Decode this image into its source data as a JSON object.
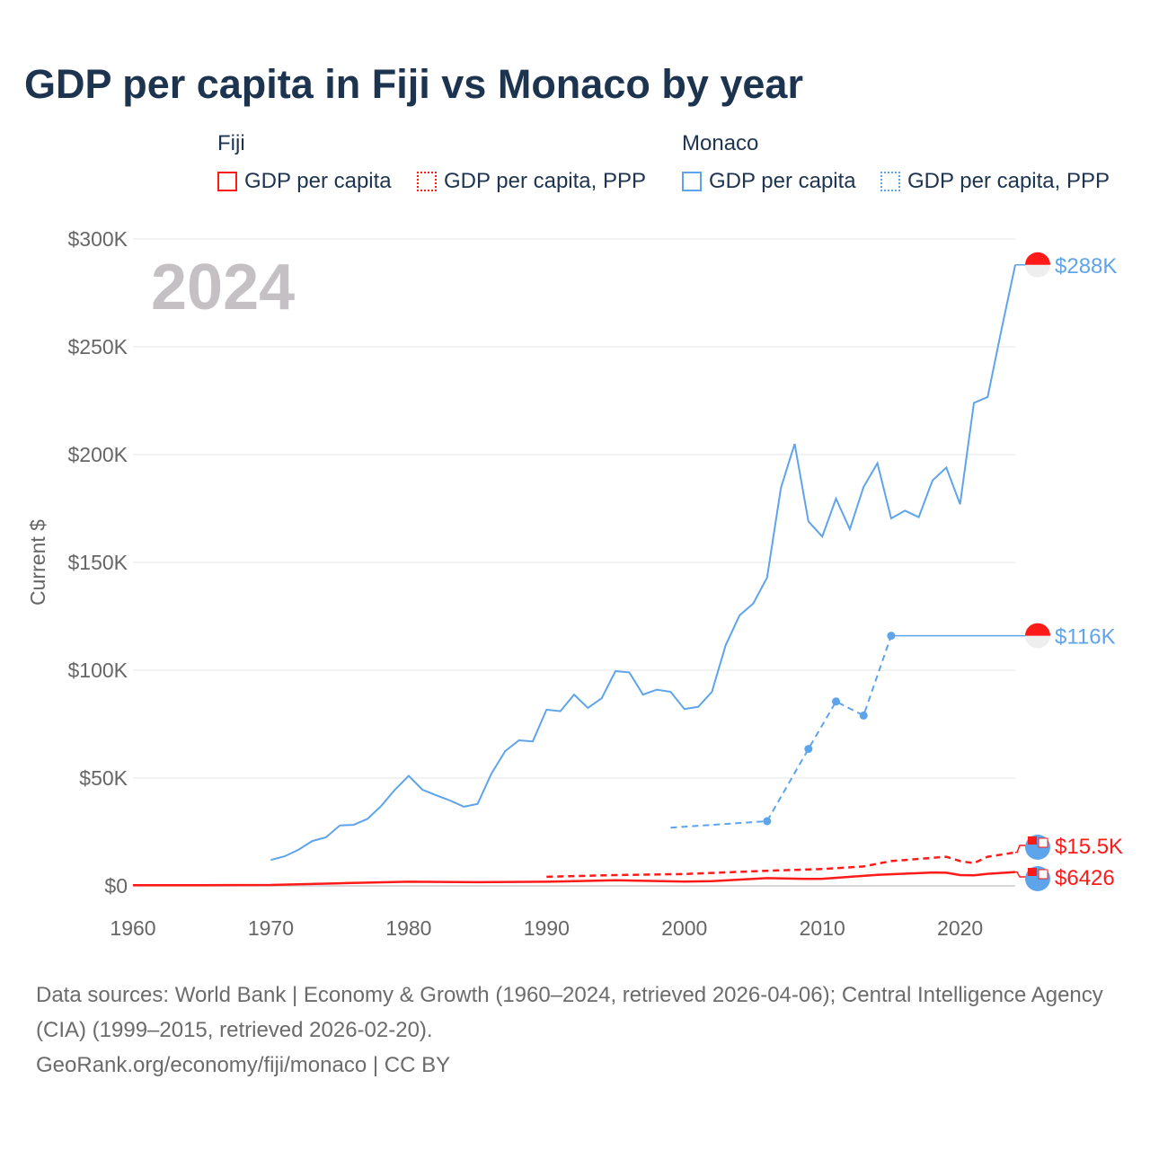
{
  "title": "GDP per capita in Fiji vs Monaco by year",
  "legend": {
    "fiji": {
      "name": "Fiji",
      "items": [
        "GDP per capita",
        "GDP per capita, PPP"
      ]
    },
    "monaco": {
      "name": "Monaco",
      "items": [
        "GDP per capita",
        "GDP per capita, PPP"
      ]
    }
  },
  "colors": {
    "fiji": "#ff1a1a",
    "monaco": "#5ea4ea",
    "grid": "#e6e6e6",
    "axis_text": "#666666",
    "year": "#c4c0c3"
  },
  "chart_data": {
    "type": "line",
    "title": "GDP per capita in Fiji vs Monaco by year",
    "xlabel": "",
    "ylabel": "Current $",
    "xlim": [
      1960,
      2024
    ],
    "ylim": [
      0,
      300000
    ],
    "x_ticks": [
      1960,
      1970,
      1980,
      1990,
      2000,
      2010,
      2020
    ],
    "x_tick_labels": [
      "1960",
      "1970",
      "1980",
      "1990",
      "2000",
      "2010",
      "2020"
    ],
    "y_ticks": [
      0,
      50000,
      100000,
      150000,
      200000,
      250000,
      300000
    ],
    "y_tick_labels": [
      "$0",
      "$50K",
      "$100K",
      "$150K",
      "$200K",
      "$250K",
      "$300K"
    ],
    "year_label": "2024",
    "series": [
      {
        "name": "Monaco GDP per capita",
        "country": "monaco",
        "style": "solid",
        "end_label": "$288K",
        "x": [
          1970,
          1971,
          1972,
          1973,
          1974,
          1975,
          1976,
          1977,
          1978,
          1979,
          1980,
          1981,
          1982,
          1983,
          1984,
          1985,
          1986,
          1987,
          1988,
          1989,
          1990,
          1991,
          1992,
          1993,
          1994,
          1995,
          1996,
          1997,
          1998,
          1999,
          2000,
          2001,
          2002,
          2003,
          2004,
          2005,
          2006,
          2007,
          2008,
          2009,
          2010,
          2011,
          2012,
          2013,
          2014,
          2015,
          2016,
          2017,
          2018,
          2019,
          2020,
          2021,
          2022,
          2023,
          2024
        ],
        "y": [
          12000,
          13700,
          16700,
          20800,
          22500,
          28000,
          28300,
          31000,
          37000,
          44600,
          51000,
          44600,
          42000,
          39600,
          36700,
          38000,
          52000,
          62500,
          67500,
          67000,
          81700,
          81000,
          88700,
          82500,
          87000,
          99600,
          99000,
          88700,
          91000,
          90000,
          82000,
          83000,
          90000,
          111700,
          125400,
          131000,
          143000,
          184600,
          205000,
          169000,
          162000,
          179600,
          165400,
          185000,
          196000,
          170400,
          174000,
          171000,
          188000,
          194000,
          177000,
          224000,
          226700,
          258000,
          288000
        ]
      },
      {
        "name": "Monaco GDP per capita, PPP",
        "country": "monaco",
        "style": "dashed",
        "end_label": "$116K",
        "markers": true,
        "x": [
          1999,
          2006,
          2009,
          2011,
          2013,
          2015
        ],
        "y": [
          27000,
          30000,
          63500,
          85500,
          79000,
          116000
        ]
      },
      {
        "name": "Fiji GDP per capita",
        "country": "fiji",
        "style": "solid",
        "end_label": "$6426",
        "x": [
          1960,
          1965,
          1970,
          1975,
          1980,
          1985,
          1990,
          1995,
          2000,
          2002,
          2006,
          2009,
          2010,
          2014,
          2018,
          2019,
          2020,
          2021,
          2022,
          2024
        ],
        "y": [
          300,
          320,
          420,
          1200,
          1900,
          1700,
          1900,
          2600,
          2000,
          2200,
          3600,
          3200,
          3300,
          5100,
          6200,
          6100,
          5000,
          4900,
          5600,
          6426
        ]
      },
      {
        "name": "Fiji GDP per capita, PPP",
        "country": "fiji",
        "style": "dashed",
        "end_label": "$15.5K",
        "x": [
          1990,
          1995,
          2000,
          2006,
          2010,
          2013,
          2015,
          2017,
          2019,
          2020,
          2021,
          2022,
          2024
        ],
        "y": [
          4200,
          5000,
          5500,
          7000,
          7800,
          9000,
          11500,
          12500,
          13500,
          11500,
          10500,
          13500,
          15500
        ]
      }
    ]
  },
  "footer": {
    "sources": "Data sources: World Bank | Economy & Growth (1960–2024, retrieved 2026-04-06); Central Intelligence Agency (CIA) (1999–2015, retrieved 2026-02-20).",
    "link": "GeoRank.org/economy/fiji/monaco | CC BY"
  }
}
